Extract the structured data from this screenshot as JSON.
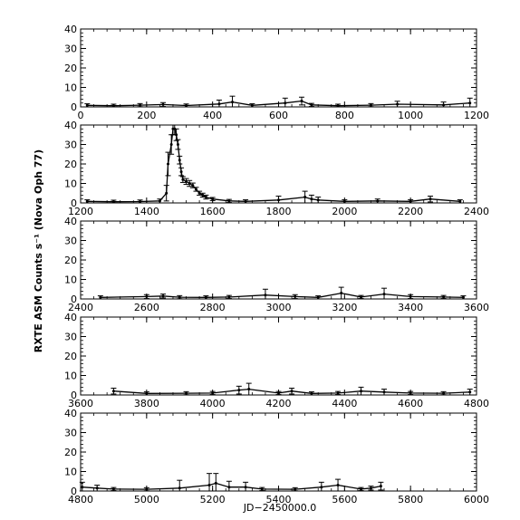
{
  "chart_data": {
    "type": "line",
    "ylabel": "RXTE ASM Counts s⁻¹ (Nova Oph 77)",
    "xlabel": "JD−2450000.0",
    "grid": false,
    "legend": "none",
    "colors": {
      "axes": "#000000",
      "data": "#000000"
    },
    "panels": [
      {
        "xlim": [
          0,
          1200
        ],
        "ylim": [
          0,
          40
        ],
        "xticks": [
          0,
          200,
          400,
          600,
          800,
          1000,
          1200
        ],
        "xtick_labels": [
          "0",
          "200",
          "400",
          "600",
          "800",
          "1000",
          "1200"
        ],
        "yticks": [
          0,
          10,
          20,
          30,
          40
        ],
        "ytick_labels": [
          "0",
          "10",
          "20",
          "30",
          "40"
        ],
        "x": [
          20,
          100,
          180,
          250,
          320,
          420,
          460,
          520,
          620,
          670,
          700,
          780,
          880,
          960,
          1100,
          1180
        ],
        "y": [
          0.8,
          0.6,
          0.9,
          1.2,
          0.7,
          1.5,
          2.5,
          0.8,
          2.0,
          3.0,
          1.0,
          0.6,
          0.9,
          1.4,
          1.0,
          2.0
        ],
        "err": [
          0.8,
          0.8,
          0.8,
          1.0,
          0.8,
          2.0,
          3.0,
          0.8,
          2.5,
          2.0,
          0.8,
          0.8,
          0.8,
          1.5,
          1.5,
          2.5
        ]
      },
      {
        "xlim": [
          1200,
          2400
        ],
        "ylim": [
          0,
          40
        ],
        "xticks": [
          1200,
          1400,
          1600,
          1800,
          2000,
          2200,
          2400
        ],
        "xtick_labels": [
          "1200",
          "1400",
          "1600",
          "1800",
          "2000",
          "2200",
          "2400"
        ],
        "yticks": [
          0,
          10,
          20,
          30,
          40
        ],
        "ytick_labels": [
          "0",
          "10",
          "20",
          "30",
          "40"
        ],
        "x": [
          1220,
          1300,
          1380,
          1440,
          1460,
          1465,
          1475,
          1480,
          1485,
          1490,
          1495,
          1500,
          1505,
          1510,
          1520,
          1530,
          1540,
          1550,
          1560,
          1570,
          1580,
          1600,
          1650,
          1700,
          1800,
          1880,
          1900,
          1920,
          2000,
          2100,
          2200,
          2260,
          2350
        ],
        "y": [
          0.8,
          0.6,
          0.7,
          1.0,
          5.0,
          20.0,
          30.0,
          38.0,
          38.0,
          35.0,
          30.0,
          22.0,
          16.0,
          12.0,
          11.0,
          10.0,
          9.0,
          7.0,
          5.0,
          4.0,
          3.0,
          2.0,
          1.0,
          0.8,
          1.5,
          3.0,
          2.0,
          1.5,
          0.8,
          1.0,
          0.8,
          2.0,
          0.8
        ],
        "err": [
          0.8,
          0.8,
          0.8,
          1.0,
          4.0,
          6.0,
          5.0,
          3.0,
          3.0,
          3.0,
          2.5,
          2.0,
          2.0,
          1.5,
          1.5,
          1.5,
          1.2,
          1.0,
          1.0,
          1.0,
          1.0,
          0.8,
          0.8,
          0.8,
          2.0,
          3.0,
          2.0,
          1.5,
          0.8,
          1.0,
          0.8,
          1.5,
          0.8
        ]
      },
      {
        "xlim": [
          2400,
          3600
        ],
        "ylim": [
          0,
          40
        ],
        "xticks": [
          2400,
          2600,
          2800,
          3000,
          3200,
          3400,
          3600
        ],
        "xtick_labels": [
          "2400",
          "2600",
          "2800",
          "3000",
          "3200",
          "3400",
          "3600"
        ],
        "yticks": [
          0,
          10,
          20,
          30,
          40
        ],
        "ytick_labels": [
          "0",
          "10",
          "20",
          "30",
          "40"
        ],
        "x": [
          2460,
          2600,
          2650,
          2700,
          2780,
          2850,
          2960,
          3050,
          3120,
          3190,
          3250,
          3320,
          3400,
          3500,
          3560
        ],
        "y": [
          0.8,
          1.2,
          1.5,
          0.9,
          0.8,
          1.0,
          2.0,
          1.2,
          0.8,
          3.0,
          1.0,
          2.5,
          1.2,
          1.0,
          0.8
        ],
        "err": [
          0.8,
          1.0,
          1.0,
          0.8,
          0.8,
          0.8,
          3.0,
          1.0,
          0.8,
          3.0,
          0.8,
          3.0,
          1.0,
          0.8,
          0.8
        ]
      },
      {
        "xlim": [
          3600,
          4800
        ],
        "ylim": [
          0,
          40
        ],
        "xticks": [
          3600,
          3800,
          4000,
          4200,
          4400,
          4600,
          4800
        ],
        "xtick_labels": [
          "3600",
          "3800",
          "4000",
          "4200",
          "4400",
          "4600",
          "4800"
        ],
        "yticks": [
          0,
          10,
          20,
          30,
          40
        ],
        "ytick_labels": [
          "0",
          "10",
          "20",
          "30",
          "40"
        ],
        "x": [
          3700,
          3800,
          3920,
          4000,
          4080,
          4110,
          4200,
          4240,
          4300,
          4380,
          4450,
          4520,
          4600,
          4700,
          4780
        ],
        "y": [
          2.0,
          0.8,
          0.9,
          1.0,
          2.5,
          3.0,
          1.0,
          2.0,
          0.8,
          1.0,
          2.0,
          1.5,
          1.0,
          0.9,
          1.5
        ],
        "err": [
          1.5,
          0.8,
          0.8,
          0.8,
          2.0,
          3.0,
          0.8,
          1.5,
          0.8,
          0.8,
          2.0,
          1.5,
          0.8,
          0.8,
          1.5
        ]
      },
      {
        "xlim": [
          4800,
          6000
        ],
        "ylim": [
          0,
          40
        ],
        "xticks": [
          4800,
          5000,
          5200,
          5400,
          5600,
          5800,
          6000
        ],
        "xtick_labels": [
          "4800",
          "5000",
          "5200",
          "5400",
          "5600",
          "5800",
          "6000"
        ],
        "yticks": [
          0,
          10,
          20,
          30,
          40
        ],
        "ytick_labels": [
          "0",
          "10",
          "20",
          "30",
          "40"
        ],
        "x": [
          4805,
          4850,
          4900,
          5000,
          5100,
          5190,
          5210,
          5250,
          5300,
          5350,
          5450,
          5530,
          5580,
          5650,
          5680,
          5710
        ],
        "y": [
          2.0,
          1.5,
          1.0,
          0.9,
          1.5,
          3.0,
          4.0,
          2.0,
          2.0,
          1.0,
          0.9,
          2.0,
          3.0,
          1.0,
          1.5,
          2.5
        ],
        "err": [
          2.5,
          1.5,
          0.8,
          0.8,
          4.0,
          6.0,
          5.0,
          3.0,
          2.5,
          0.8,
          0.8,
          2.5,
          3.0,
          0.8,
          1.0,
          2.0
        ]
      }
    ]
  }
}
